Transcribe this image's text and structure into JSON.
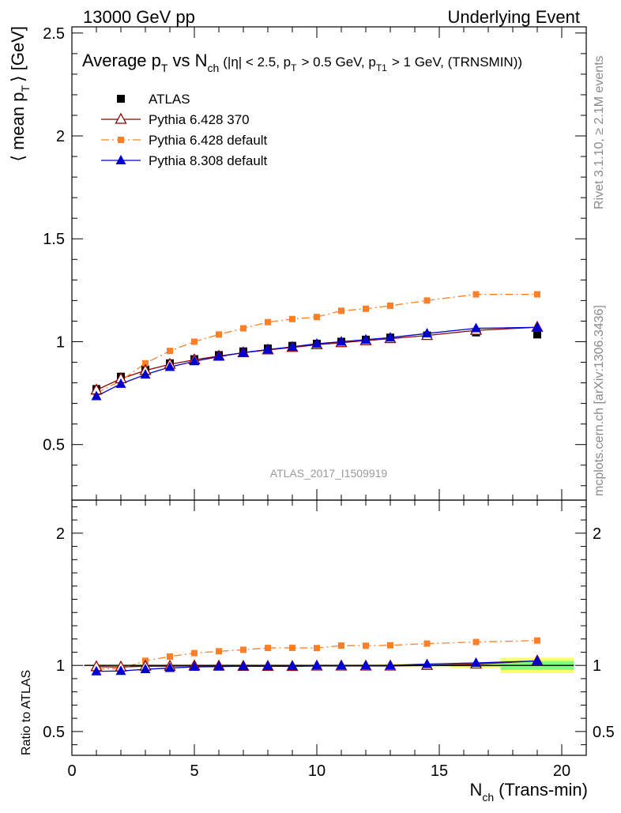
{
  "header": {
    "left": "13000 GeV pp",
    "right": "Underlying Event"
  },
  "side_text": {
    "rivet": "Rivet 3.1.10, ≥ 2.1M events",
    "mcplots": "mcplots.cern.ch [arXiv:1306.3436]"
  },
  "chart_data": {
    "type": "line",
    "title_parts": {
      "average": "Average p",
      "sub_t": "T",
      "vs": "vs N",
      "sub_ch": "ch",
      "cuts_a": "(|η| < 2.5, p",
      "cuts_b": "> 0.5 GeV, p",
      "sub_t1": "T1",
      "cuts_c": "> 1 GeV, (TRNSMIN))"
    },
    "watermark": "ATLAS_2017_I1509919",
    "ylabel_parts": {
      "main": "⟨ mean p",
      "sub": "T",
      "end": "⟩ [GeV]"
    },
    "ratio_ylabel": "Ratio to ATLAS",
    "xlabel_parts": {
      "main": "N",
      "sub": "ch",
      "end": "(Trans-min)"
    },
    "xlim": [
      0,
      21
    ],
    "ylim_main": [
      0.23,
      2.53
    ],
    "ylim_ratio": [
      0.32,
      2.25
    ],
    "x_ticks": [
      "0",
      "5",
      "10",
      "15",
      "20"
    ],
    "y_ticks_main": [
      "0.5",
      "1",
      "1.5",
      "2",
      "2.5"
    ],
    "y_ticks_ratio": [
      "0.5",
      "1",
      "2"
    ],
    "x": [
      1,
      2,
      3,
      4,
      5,
      6,
      7,
      8,
      9,
      10,
      11,
      12,
      13,
      14.5,
      16.5,
      19
    ],
    "legend": [
      {
        "name": "ATLAS"
      },
      {
        "name": "Pythia 6.428 370"
      },
      {
        "name": "Pythia 6.428 default"
      },
      {
        "name": "Pythia 8.308 default"
      }
    ],
    "series": [
      {
        "name": "ATLAS",
        "color": "#000000",
        "values": [
          0.77,
          0.83,
          0.865,
          0.895,
          0.915,
          0.935,
          0.953,
          0.967,
          0.98,
          0.99,
          1.0,
          1.01,
          1.02,
          1.03,
          1.045,
          1.035
        ],
        "ratio": [
          1,
          1,
          1,
          1,
          1,
          1,
          1,
          1,
          1,
          1,
          1,
          1,
          1,
          1,
          1,
          1
        ]
      },
      {
        "name": "Pythia 6.428 370",
        "color": "#8b0000",
        "values": [
          0.765,
          0.82,
          0.86,
          0.89,
          0.912,
          0.93,
          0.946,
          0.96,
          0.972,
          0.985,
          0.995,
          1.005,
          1.015,
          1.03,
          1.055,
          1.07
        ],
        "ratio": [
          0.99,
          0.988,
          0.994,
          0.994,
          0.997,
          0.995,
          0.993,
          0.993,
          0.992,
          0.995,
          0.995,
          0.995,
          0.995,
          1.0,
          1.01,
          1.034
        ]
      },
      {
        "name": "Pythia 6.428 default",
        "color": "#ff7f27",
        "values": [
          0.75,
          0.81,
          0.895,
          0.955,
          1.0,
          1.035,
          1.065,
          1.095,
          1.11,
          1.12,
          1.15,
          1.16,
          1.175,
          1.2,
          1.23,
          1.23
        ],
        "ratio": [
          0.974,
          0.976,
          1.035,
          1.067,
          1.093,
          1.107,
          1.118,
          1.132,
          1.133,
          1.131,
          1.15,
          1.149,
          1.152,
          1.165,
          1.177,
          1.188
        ]
      },
      {
        "name": "Pythia 8.308 default",
        "color": "#0000d0",
        "values": [
          0.735,
          0.795,
          0.84,
          0.877,
          0.905,
          0.927,
          0.947,
          0.962,
          0.975,
          0.99,
          1.0,
          1.01,
          1.02,
          1.04,
          1.065,
          1.07
        ],
        "ratio": [
          0.955,
          0.958,
          0.971,
          0.98,
          0.989,
          0.991,
          0.994,
          0.995,
          0.995,
          1.0,
          1.0,
          1.0,
          1.0,
          1.01,
          1.019,
          1.034
        ]
      }
    ],
    "uncertainty_band": {
      "bins": [
        [
          0.5,
          1.5
        ],
        [
          1.5,
          2.5
        ],
        [
          2.5,
          3.5
        ],
        [
          3.5,
          4.5
        ],
        [
          4.5,
          5.5
        ],
        [
          5.5,
          6.5
        ],
        [
          6.5,
          7.5
        ],
        [
          7.5,
          8.5
        ],
        [
          8.5,
          9.5
        ],
        [
          9.5,
          10.5
        ],
        [
          10.5,
          11.5
        ],
        [
          11.5,
          12.5
        ],
        [
          12.5,
          13.5
        ],
        [
          13.5,
          15.5
        ],
        [
          15.5,
          17.5
        ],
        [
          17.5,
          20.5
        ]
      ],
      "stat": [
        0.004,
        0.004,
        0.004,
        0.004,
        0.004,
        0.004,
        0.004,
        0.004,
        0.004,
        0.004,
        0.004,
        0.005,
        0.006,
        0.007,
        0.01,
        0.034
      ],
      "total": [
        0.008,
        0.008,
        0.008,
        0.008,
        0.008,
        0.008,
        0.008,
        0.008,
        0.008,
        0.008,
        0.008,
        0.009,
        0.01,
        0.013,
        0.02,
        0.058
      ],
      "stat_color": "#7fff7f",
      "total_color": "#ffff66"
    }
  }
}
